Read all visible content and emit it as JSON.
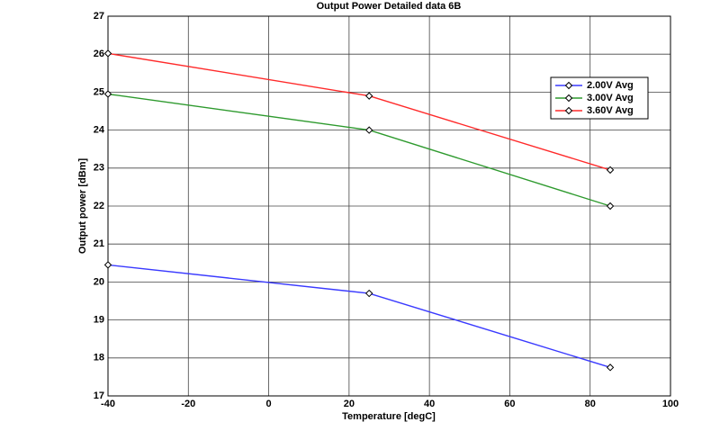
{
  "chart_data": {
    "type": "line",
    "title": "Output Power Detailed data 6B",
    "x_label": "Temperature [degC]",
    "y_label": "Output power [dBm]",
    "x": [
      -40,
      25,
      85
    ],
    "series": [
      {
        "name": "2.00V Avg",
        "color": "#3a3aff",
        "values": [
          20.45,
          19.7,
          17.75
        ]
      },
      {
        "name": "3.00V Avg",
        "color": "#2e9a2e",
        "values": [
          24.95,
          24.0,
          22.0
        ]
      },
      {
        "name": "3.60V Avg",
        "color": "#ff2a2a",
        "values": [
          26.02,
          24.9,
          22.95
        ]
      }
    ],
    "xlim": [
      -40,
      100
    ],
    "xticks": [
      -40,
      -20,
      0,
      20,
      40,
      60,
      80,
      100
    ],
    "ylim": [
      17,
      27
    ],
    "yticks": [
      17,
      18,
      19,
      20,
      21,
      22,
      23,
      24,
      25,
      26,
      27
    ],
    "grid": true
  }
}
